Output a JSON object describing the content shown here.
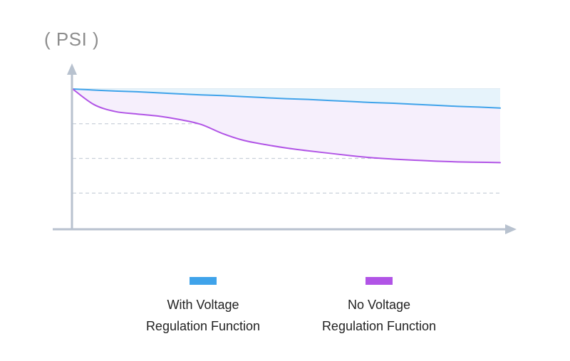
{
  "chart_data": {
    "type": "area",
    "title": "",
    "xlabel": "",
    "ylabel": "( PSI )",
    "x": [
      0,
      5,
      10,
      15,
      20,
      25,
      30,
      35,
      40,
      45,
      50,
      55,
      60,
      65,
      70,
      75,
      80,
      85,
      90,
      95,
      100
    ],
    "ylim": [
      0,
      4
    ],
    "grid": true,
    "gridlines_y": [
      1,
      2,
      3
    ],
    "series": [
      {
        "name": "With Voltage Regulation Function",
        "color": "#3fa3ea",
        "fill": "#e6f3fb",
        "values": [
          4.0,
          3.97,
          3.94,
          3.92,
          3.89,
          3.86,
          3.83,
          3.81,
          3.78,
          3.75,
          3.72,
          3.7,
          3.67,
          3.64,
          3.61,
          3.59,
          3.56,
          3.53,
          3.5,
          3.48,
          3.45
        ]
      },
      {
        "name": "No Voltage Regulation Function",
        "color": "#b154e6",
        "fill": "#f6effc",
        "values": [
          4.0,
          3.55,
          3.35,
          3.28,
          3.22,
          3.12,
          2.98,
          2.72,
          2.52,
          2.4,
          2.3,
          2.22,
          2.15,
          2.08,
          2.02,
          1.98,
          1.95,
          1.92,
          1.9,
          1.89,
          1.88
        ]
      }
    ],
    "legend": {
      "position": "bottom",
      "entries": [
        {
          "lines": [
            "With Voltage",
            "Regulation Function"
          ],
          "color": "#3fa3ea"
        },
        {
          "lines": [
            "No Voltage",
            "Regulation Function"
          ],
          "color": "#b154e6"
        }
      ]
    },
    "axis_color": "#b8c2cf",
    "gridline_color": "#c9d0da"
  }
}
